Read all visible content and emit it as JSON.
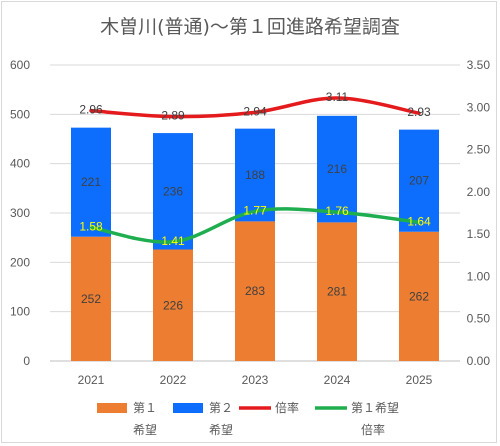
{
  "chart_data": {
    "type": "bar",
    "title": "木曽川(普通)～第１回進路希望調査",
    "categories": [
      "2021",
      "2022",
      "2023",
      "2024",
      "2025"
    ],
    "stacked": true,
    "bar_series": [
      {
        "name_lines": [
          "第１",
          "希望"
        ],
        "values": [
          252,
          226,
          283,
          281,
          262
        ],
        "color": "#ed7d31"
      },
      {
        "name_lines": [
          "第２",
          "希望"
        ],
        "values": [
          221,
          236,
          188,
          216,
          207
        ],
        "color": "#0d6efd"
      }
    ],
    "line_series": [
      {
        "name_lines": [
          "倍率"
        ],
        "values": [
          2.96,
          2.89,
          2.94,
          3.11,
          2.93
        ],
        "labels": [
          "2.96",
          "2.89",
          "2.94",
          "3.11",
          "2.93"
        ],
        "color": "#e41a1c",
        "axis": "right"
      },
      {
        "name_lines": [
          "第１希望",
          "倍率"
        ],
        "values": [
          1.58,
          1.41,
          1.77,
          1.76,
          1.64
        ],
        "labels": [
          "1.58",
          "1.41",
          "1.77",
          "1.76",
          "1.64"
        ],
        "color": "#1fae4f",
        "label_color": "#ffff00",
        "axis": "right"
      }
    ],
    "y_left": {
      "min": 0,
      "max": 600,
      "ticks": [
        "0",
        "100",
        "200",
        "300",
        "400",
        "500",
        "600"
      ]
    },
    "y_right": {
      "min": 0,
      "max": 3.5,
      "ticks": [
        "0.00",
        "0.50",
        "1.00",
        "1.50",
        "2.00",
        "2.50",
        "3.00",
        "3.50"
      ]
    },
    "grid": true,
    "legend": "bottom"
  }
}
